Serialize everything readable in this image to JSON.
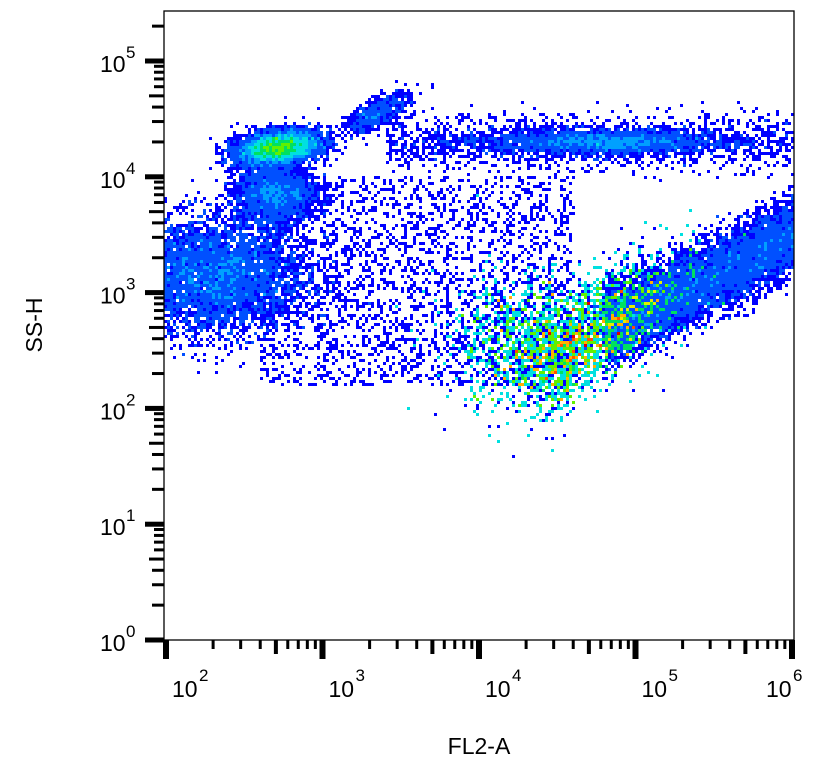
{
  "chart_data": {
    "type": "scatter",
    "subtype": "flow-cytometry-density-dot-plot",
    "title": "",
    "xlabel": "FL2-A",
    "ylabel": "SS-H",
    "xscale": "log",
    "yscale": "log",
    "xlim": [
      100,
      1000000
    ],
    "ylim": [
      1,
      300000
    ],
    "x_ticks": [
      {
        "base": "10",
        "exp": "2",
        "value": 100
      },
      {
        "base": "10",
        "exp": "3",
        "value": 1000
      },
      {
        "base": "10",
        "exp": "4",
        "value": 10000
      },
      {
        "base": "10",
        "exp": "5",
        "value": 100000
      },
      {
        "base": "10",
        "exp": "6",
        "value": 1000000
      }
    ],
    "y_ticks": [
      {
        "base": "10",
        "exp": "0",
        "value": 1
      },
      {
        "base": "10",
        "exp": "1",
        "value": 10
      },
      {
        "base": "10",
        "exp": "2",
        "value": 100
      },
      {
        "base": "10",
        "exp": "3",
        "value": 1000
      },
      {
        "base": "10",
        "exp": "4",
        "value": 10000
      },
      {
        "base": "10",
        "exp": "5",
        "value": 100000
      }
    ],
    "grid": false,
    "legend": null,
    "colormap": [
      "#0000ff",
      "#0050ff",
      "#00a0ff",
      "#00e0e0",
      "#00e060",
      "#60f000",
      "#e0f000",
      "#ffb000",
      "#ff5000",
      "#e00000"
    ],
    "populations": [
      {
        "name": "main-population",
        "x_center": 40000,
        "y_center": 300,
        "x_range": [
          4000,
          1000000
        ],
        "y_range": [
          40,
          3000
        ],
        "peak_density": "high",
        "shape": "diagonal-wedge"
      },
      {
        "name": "low-fl2-debris",
        "x_center": 200,
        "y_center": 1500,
        "x_range": [
          100,
          1000
        ],
        "y_range": [
          100,
          4000
        ],
        "peak_density": "low"
      },
      {
        "name": "upper-left-cluster",
        "x_center": 500,
        "y_center": 18000,
        "x_range": [
          250,
          1000
        ],
        "y_range": [
          10000,
          30000
        ],
        "peak_density": "medium"
      },
      {
        "name": "mid-left-cluster",
        "x_center": 500,
        "y_center": 7000,
        "x_range": [
          250,
          1000
        ],
        "y_range": [
          4000,
          12000
        ],
        "peak_density": "low"
      },
      {
        "name": "small-top-cluster",
        "x_center": 2200,
        "y_center": 38000,
        "x_range": [
          1500,
          3500
        ],
        "y_range": [
          25000,
          55000
        ],
        "peak_density": "low"
      },
      {
        "name": "high-ss-band",
        "x_center": 60000,
        "y_center": 20000,
        "x_range": [
          3000,
          1000000
        ],
        "y_range": [
          12000,
          30000
        ],
        "peak_density": "low"
      }
    ]
  }
}
